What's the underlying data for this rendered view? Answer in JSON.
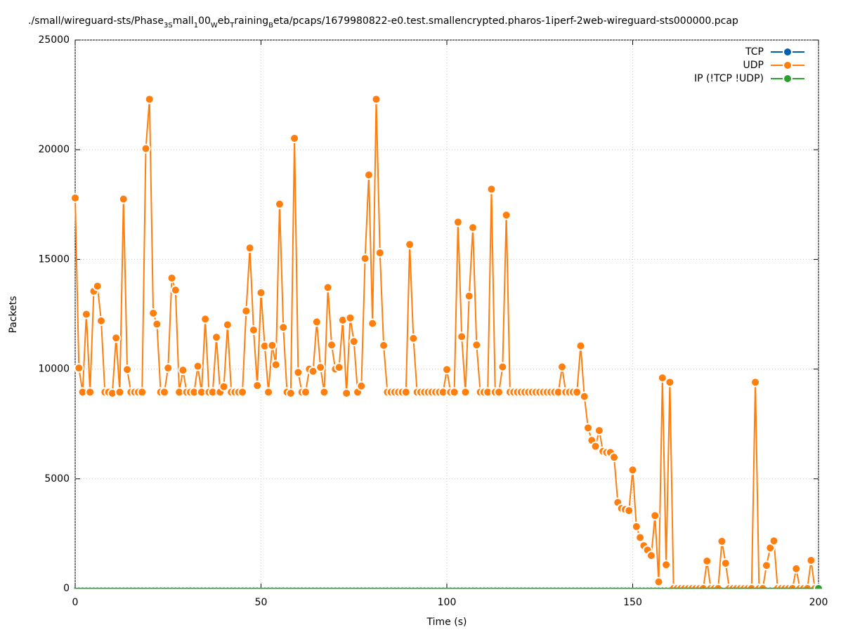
{
  "chart_data": {
    "type": "line",
    "title": [
      {
        "text": "./small/wireguard-sts/Phase"
      },
      {
        "text": "3S",
        "sub": true
      },
      {
        "text": "mall"
      },
      {
        "text": "1",
        "sub": true
      },
      {
        "text": "00"
      },
      {
        "text": "W",
        "sub": true
      },
      {
        "text": "eb"
      },
      {
        "text": "T",
        "sub": true
      },
      {
        "text": "raining"
      },
      {
        "text": "B",
        "sub": true
      },
      {
        "text": "eta/pcaps/1679980822-e0.test.smallencrypted.pharos-1iperf-2web-wireguard-sts000000.pcap"
      }
    ],
    "xlabel": "Time (s)",
    "ylabel": "Packets",
    "xlim": [
      0,
      200
    ],
    "xticks": [
      0,
      50,
      100,
      150,
      200
    ],
    "ylim": [
      0,
      25000
    ],
    "yticks": [
      0,
      5000,
      10000,
      15000,
      20000,
      25000
    ],
    "grid": true,
    "legend": "top-right",
    "x": [
      0,
      1,
      2,
      3,
      4,
      5,
      6,
      7,
      8,
      9,
      10,
      11,
      12,
      13,
      14,
      15,
      16,
      17,
      18,
      19,
      20,
      21,
      22,
      23,
      24,
      25,
      26,
      27,
      28,
      29,
      30,
      31,
      32,
      33,
      34,
      35,
      36,
      37,
      38,
      39,
      40,
      41,
      42,
      43,
      44,
      45,
      46,
      47,
      48,
      49,
      50,
      51,
      52,
      53,
      54,
      55,
      56,
      57,
      58,
      59,
      60,
      61,
      62,
      63,
      64,
      65,
      66,
      67,
      68,
      69,
      70,
      71,
      72,
      73,
      74,
      75,
      76,
      77,
      78,
      79,
      80,
      81,
      82,
      83,
      84,
      85,
      86,
      87,
      88,
      89,
      90,
      91,
      92,
      93,
      94,
      95,
      96,
      97,
      98,
      99,
      100,
      101,
      102,
      103,
      104,
      105,
      106,
      107,
      108,
      109,
      110,
      111,
      112,
      113,
      114,
      115,
      116,
      117,
      118,
      119,
      120,
      121,
      122,
      123,
      124,
      125,
      126,
      127,
      128,
      129,
      130,
      131,
      132,
      133,
      134,
      135,
      136,
      137,
      138,
      139,
      140,
      141,
      142,
      143,
      144,
      145,
      146,
      147,
      148,
      149,
      150,
      151,
      152,
      153,
      154,
      155,
      156,
      157,
      158,
      159,
      160,
      161,
      162,
      163,
      164,
      165,
      166,
      167,
      168,
      169,
      170,
      171,
      172,
      173,
      174,
      175,
      176,
      177,
      178,
      179,
      180,
      181,
      182,
      183,
      184,
      185,
      186,
      187,
      188,
      189,
      190,
      191,
      192,
      193,
      194,
      195,
      196,
      197,
      198,
      199,
      200
    ],
    "series": [
      {
        "name": "TCP",
        "color": "#0060ad",
        "values": [
          0,
          0,
          0,
          0,
          0,
          0,
          0,
          0,
          0,
          0,
          0,
          0,
          0,
          0,
          0,
          0,
          0,
          0,
          0,
          0,
          0,
          0,
          0,
          0,
          0,
          0,
          0,
          0,
          0,
          0,
          0,
          0,
          0,
          0,
          0,
          0,
          0,
          0,
          0,
          0,
          0,
          0,
          0,
          0,
          0,
          0,
          0,
          0,
          0,
          0,
          0,
          0,
          0,
          0,
          0,
          0,
          0,
          0,
          0,
          0,
          0,
          0,
          0,
          0,
          0,
          0,
          0,
          0,
          0,
          0,
          0,
          0,
          0,
          0,
          0,
          0,
          0,
          0,
          0,
          0,
          0,
          0,
          0,
          0,
          0,
          0,
          0,
          0,
          0,
          0,
          0,
          0,
          0,
          0,
          0,
          0,
          0,
          0,
          0,
          0,
          0,
          0,
          0,
          0,
          0,
          0,
          0,
          0,
          0,
          0,
          0,
          0,
          0,
          0,
          0,
          0,
          0,
          0,
          0,
          0,
          0,
          0,
          0,
          0,
          0,
          0,
          0,
          0,
          0,
          0,
          0,
          0,
          0,
          0,
          0,
          0,
          0,
          0,
          0,
          0,
          0,
          0,
          0,
          0,
          0,
          0,
          0,
          0,
          0,
          0,
          0,
          0,
          0,
          0,
          0,
          0,
          0,
          0,
          0,
          0,
          0,
          0,
          0,
          0,
          0,
          0,
          0,
          0,
          0,
          0,
          0,
          0,
          0,
          0,
          0,
          0,
          0,
          0,
          0,
          0,
          0,
          0,
          0,
          0,
          0,
          0,
          0,
          0,
          0,
          0,
          0,
          0,
          0,
          0,
          0,
          0,
          0,
          0,
          0,
          0,
          0
        ]
      },
      {
        "name": "UDP",
        "color": "#ff7f0e",
        "values": [
          17800,
          10050,
          8950,
          12500,
          8950,
          13550,
          13780,
          12200,
          8950,
          8950,
          8900,
          11420,
          8950,
          17750,
          9980,
          8950,
          8950,
          8950,
          8950,
          20050,
          22300,
          12550,
          12050,
          8950,
          8950,
          10050,
          14150,
          13600,
          8950,
          9950,
          8950,
          8950,
          8950,
          10130,
          8950,
          12280,
          8950,
          8950,
          11450,
          8950,
          9200,
          12020,
          8950,
          8950,
          8950,
          8950,
          12650,
          15520,
          11780,
          9250,
          13480,
          11050,
          8950,
          11080,
          10200,
          17520,
          11900,
          8950,
          8900,
          20520,
          9850,
          8950,
          8950,
          10000,
          9900,
          12150,
          10080,
          8950,
          13720,
          11100,
          10000,
          10080,
          12230,
          8900,
          12330,
          11260,
          8950,
          9230,
          15040,
          18850,
          12080,
          22300,
          15300,
          11080,
          8950,
          8950,
          8950,
          8950,
          8950,
          8950,
          15680,
          11400,
          8950,
          8950,
          8950,
          8950,
          8950,
          8950,
          8950,
          8950,
          9980,
          8950,
          8950,
          16700,
          11480,
          8950,
          13330,
          16450,
          11100,
          8950,
          8950,
          8950,
          18200,
          8950,
          8950,
          10100,
          17020,
          8950,
          8950,
          8950,
          8950,
          8950,
          8950,
          8950,
          8950,
          8950,
          8950,
          8950,
          8950,
          8950,
          8950,
          10100,
          8950,
          8950,
          8950,
          8950,
          11060,
          8750,
          7320,
          6750,
          6480,
          7200,
          6250,
          6200,
          6200,
          5980,
          3920,
          3650,
          3600,
          3550,
          5400,
          2820,
          2320,
          1950,
          1750,
          1500,
          3320,
          300,
          9600,
          1080,
          9400,
          0,
          0,
          0,
          0,
          0,
          0,
          0,
          0,
          0,
          1250,
          0,
          0,
          0,
          2150,
          1150,
          0,
          0,
          0,
          0,
          0,
          0,
          0,
          9400,
          0,
          0,
          1050,
          1850,
          2170,
          0,
          0,
          0,
          0,
          0,
          900,
          0,
          0,
          0,
          1280,
          0,
          0
        ]
      },
      {
        "name": "IP (!TCP  !UDP)",
        "color": "#2ca02c",
        "values": [
          0,
          0,
          0,
          0,
          0,
          0,
          0,
          0,
          0,
          0,
          0,
          0,
          0,
          0,
          0,
          0,
          0,
          0,
          0,
          0,
          0,
          0,
          0,
          0,
          0,
          0,
          0,
          0,
          0,
          0,
          0,
          0,
          0,
          0,
          0,
          0,
          0,
          0,
          0,
          0,
          0,
          0,
          0,
          0,
          0,
          0,
          0,
          0,
          0,
          0,
          0,
          0,
          0,
          0,
          0,
          0,
          0,
          0,
          0,
          0,
          0,
          0,
          0,
          0,
          0,
          0,
          0,
          0,
          0,
          0,
          0,
          0,
          0,
          0,
          0,
          0,
          0,
          0,
          0,
          0,
          0,
          0,
          0,
          0,
          0,
          0,
          0,
          0,
          0,
          0,
          0,
          0,
          0,
          0,
          0,
          0,
          0,
          0,
          0,
          0,
          0,
          0,
          0,
          0,
          0,
          0,
          0,
          0,
          0,
          0,
          0,
          0,
          0,
          0,
          0,
          0,
          0,
          0,
          0,
          0,
          0,
          0,
          0,
          0,
          0,
          0,
          0,
          0,
          0,
          0,
          0,
          0,
          0,
          0,
          0,
          0,
          0,
          0,
          0,
          0,
          0,
          0,
          0,
          0,
          0,
          0,
          0,
          0,
          0,
          0,
          0,
          0,
          0,
          0,
          0,
          0,
          0,
          0,
          0,
          0,
          0,
          0,
          0,
          0,
          0,
          0,
          0,
          0,
          0,
          0,
          0,
          0,
          0,
          0,
          0,
          0,
          0,
          0,
          0,
          0,
          0,
          0,
          0,
          0,
          0,
          0,
          0,
          0,
          0,
          0,
          0,
          0,
          0,
          0,
          0,
          0,
          0,
          0,
          0,
          0,
          0
        ]
      }
    ]
  }
}
